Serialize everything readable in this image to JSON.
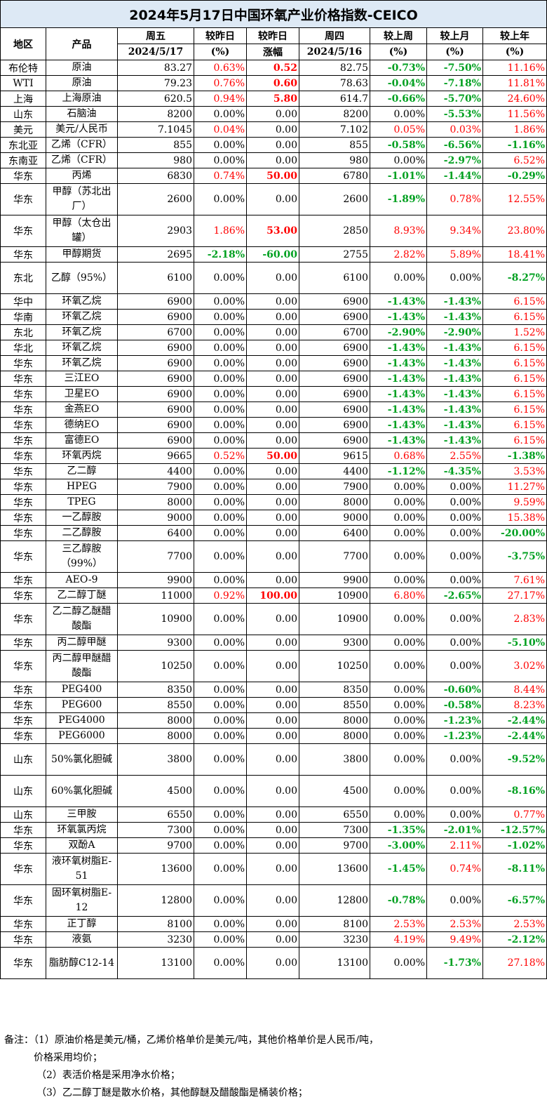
{
  "title": "2024年5月17日中国环氧产业价格指数-CEICO",
  "headers": {
    "region": "地区",
    "product": "产品",
    "fri": "周五",
    "fri_date": "2024/5/17",
    "dod_pct": "较昨日",
    "dod_pct_unit": "(%)",
    "dod_abs": "较昨日",
    "dod_abs_unit": "涨幅",
    "thu": "周四",
    "thu_date": "2024/5/16",
    "wow": "较上周",
    "wow_unit": "(%)",
    "mom": "较上月",
    "mom_unit": "(%)",
    "yoy": "较上年",
    "yoy_unit": "(%)"
  },
  "rows": [
    {
      "region": "布伦特",
      "product": "原油",
      "fri": "83.27",
      "dod_pct": "0.63%",
      "dod_abs": "0.52",
      "thu": "82.75",
      "wow": "-0.73%",
      "mom": "-7.50%",
      "yoy": "11.16%"
    },
    {
      "region": "WTI",
      "product": "原油",
      "fri": "79.23",
      "dod_pct": "0.76%",
      "dod_abs": "0.60",
      "thu": "78.63",
      "wow": "-0.04%",
      "mom": "-7.18%",
      "yoy": "11.81%"
    },
    {
      "region": "上海",
      "product": "上海原油",
      "fri": "620.5",
      "dod_pct": "0.94%",
      "dod_abs": "5.80",
      "thu": "614.7",
      "wow": "-0.66%",
      "mom": "-5.70%",
      "yoy": "24.60%"
    },
    {
      "region": "山东",
      "product": "石脑油",
      "fri": "8200",
      "dod_pct": "0.00%",
      "dod_abs": "0.00",
      "thu": "8200",
      "wow": "0.00%",
      "mom": "-5.53%",
      "yoy": "11.56%"
    },
    {
      "region": "美元",
      "product": "美元/人民币",
      "fri": "7.1045",
      "dod_pct": "0.04%",
      "dod_abs": "0.00",
      "thu": "7.102",
      "wow": "0.05%",
      "mom": "0.03%",
      "yoy": "1.86%"
    },
    {
      "region": "东北亚",
      "product": "乙烯（CFR）",
      "fri": "855",
      "dod_pct": "0.00%",
      "dod_abs": "0.00",
      "thu": "855",
      "wow": "-0.58%",
      "mom": "-6.56%",
      "yoy": "-1.16%"
    },
    {
      "region": "东南亚",
      "product": "乙烯（CFR）",
      "fri": "980",
      "dod_pct": "0.00%",
      "dod_abs": "0.00",
      "thu": "980",
      "wow": "0.00%",
      "mom": "-2.97%",
      "yoy": "6.52%"
    },
    {
      "region": "华东",
      "product": "丙烯",
      "fri": "6830",
      "dod_pct": "0.74%",
      "dod_abs": "50.00",
      "thu": "6780",
      "wow": "-1.01%",
      "mom": "-1.44%",
      "yoy": "-0.29%"
    },
    {
      "region": "华东",
      "product": "甲醇（苏北出厂）",
      "fri": "2600",
      "dod_pct": "0.00%",
      "dod_abs": "0.00",
      "thu": "2600",
      "wow": "-1.89%",
      "mom": "0.78%",
      "yoy": "12.55%"
    },
    {
      "region": "华东",
      "product": "甲醇（太仓出罐）",
      "fri": "2903",
      "dod_pct": "1.86%",
      "dod_abs": "53.00",
      "thu": "2850",
      "wow": "8.93%",
      "mom": "9.34%",
      "yoy": "23.80%"
    },
    {
      "region": "华东",
      "product": "甲醇期货",
      "fri": "2695",
      "dod_pct": "-2.18%",
      "dod_abs": "-60.00",
      "thu": "2755",
      "wow": "2.82%",
      "mom": "5.89%",
      "yoy": "18.41%"
    },
    {
      "region": "东北",
      "product": "乙醇（95%）",
      "fri": "6100",
      "dod_pct": "0.00%",
      "dod_abs": "0.00",
      "thu": "6100",
      "wow": "0.00%",
      "mom": "0.00%",
      "yoy": "-8.27%"
    },
    {
      "region": "华中",
      "product": "环氧乙烷",
      "fri": "6900",
      "dod_pct": "0.00%",
      "dod_abs": "0.00",
      "thu": "6900",
      "wow": "-1.43%",
      "mom": "-1.43%",
      "yoy": "6.15%"
    },
    {
      "region": "华南",
      "product": "环氧乙烷",
      "fri": "6900",
      "dod_pct": "0.00%",
      "dod_abs": "0.00",
      "thu": "6900",
      "wow": "-1.43%",
      "mom": "-1.43%",
      "yoy": "6.15%"
    },
    {
      "region": "东北",
      "product": "环氧乙烷",
      "fri": "6700",
      "dod_pct": "0.00%",
      "dod_abs": "0.00",
      "thu": "6700",
      "wow": "-2.90%",
      "mom": "-2.90%",
      "yoy": "1.52%"
    },
    {
      "region": "华北",
      "product": "环氧乙烷",
      "fri": "6900",
      "dod_pct": "0.00%",
      "dod_abs": "0.00",
      "thu": "6900",
      "wow": "-1.43%",
      "mom": "-1.43%",
      "yoy": "6.15%"
    },
    {
      "region": "华东",
      "product": "环氧乙烷",
      "fri": "6900",
      "dod_pct": "0.00%",
      "dod_abs": "0.00",
      "thu": "6900",
      "wow": "-1.43%",
      "mom": "-1.43%",
      "yoy": "6.15%"
    },
    {
      "region": "华东",
      "product": "三江EO",
      "fri": "6900",
      "dod_pct": "0.00%",
      "dod_abs": "0.00",
      "thu": "6900",
      "wow": "-1.43%",
      "mom": "-1.43%",
      "yoy": "6.15%"
    },
    {
      "region": "华东",
      "product": "卫星EO",
      "fri": "6900",
      "dod_pct": "0.00%",
      "dod_abs": "0.00",
      "thu": "6900",
      "wow": "-1.43%",
      "mom": "-1.43%",
      "yoy": "6.15%"
    },
    {
      "region": "华东",
      "product": "金燕EO",
      "fri": "6900",
      "dod_pct": "0.00%",
      "dod_abs": "0.00",
      "thu": "6900",
      "wow": "-1.43%",
      "mom": "-1.43%",
      "yoy": "6.15%"
    },
    {
      "region": "华东",
      "product": "德纳EO",
      "fri": "6900",
      "dod_pct": "0.00%",
      "dod_abs": "0.00",
      "thu": "6900",
      "wow": "-1.43%",
      "mom": "-1.43%",
      "yoy": "6.15%"
    },
    {
      "region": "华东",
      "product": "富德EO",
      "fri": "6900",
      "dod_pct": "0.00%",
      "dod_abs": "0.00",
      "thu": "6900",
      "wow": "-1.43%",
      "mom": "-1.43%",
      "yoy": "6.15%"
    },
    {
      "region": "华东",
      "product": "环氧丙烷",
      "fri": "9665",
      "dod_pct": "0.52%",
      "dod_abs": "50.00",
      "thu": "9615",
      "wow": "0.68%",
      "mom": "2.55%",
      "yoy": "-1.38%"
    },
    {
      "region": "华东",
      "product": "乙二醇",
      "fri": "4400",
      "dod_pct": "0.00%",
      "dod_abs": "0.00",
      "thu": "4400",
      "wow": "-1.12%",
      "mom": "-4.35%",
      "yoy": "3.53%"
    },
    {
      "region": "华东",
      "product": "HPEG",
      "fri": "7900",
      "dod_pct": "0.00%",
      "dod_abs": "0.00",
      "thu": "7900",
      "wow": "0.00%",
      "mom": "0.00%",
      "yoy": "11.27%"
    },
    {
      "region": "华东",
      "product": "TPEG",
      "fri": "8000",
      "dod_pct": "0.00%",
      "dod_abs": "0.00",
      "thu": "8000",
      "wow": "0.00%",
      "mom": "0.00%",
      "yoy": "9.59%"
    },
    {
      "region": "华东",
      "product": "一乙醇胺",
      "fri": "9000",
      "dod_pct": "0.00%",
      "dod_abs": "0.00",
      "thu": "9000",
      "wow": "0.00%",
      "mom": "0.00%",
      "yoy": "15.38%"
    },
    {
      "region": "华东",
      "product": "二乙醇胺",
      "fri": "6400",
      "dod_pct": "0.00%",
      "dod_abs": "0.00",
      "thu": "6400",
      "wow": "0.00%",
      "mom": "0.00%",
      "yoy": "-20.00%"
    },
    {
      "region": "华东",
      "product": "三乙醇胺（99%）",
      "fri": "7700",
      "dod_pct": "0.00%",
      "dod_abs": "0.00",
      "thu": "7700",
      "wow": "0.00%",
      "mom": "0.00%",
      "yoy": "-3.75%"
    },
    {
      "region": "华东",
      "product": "AEO-9",
      "fri": "9900",
      "dod_pct": "0.00%",
      "dod_abs": "0.00",
      "thu": "9900",
      "wow": "0.00%",
      "mom": "0.00%",
      "yoy": "7.61%"
    },
    {
      "region": "华东",
      "product": "乙二醇丁醚",
      "fri": "11000",
      "dod_pct": "0.92%",
      "dod_abs": "100.00",
      "thu": "10900",
      "wow": "6.80%",
      "mom": "-2.65%",
      "yoy": "27.17%"
    },
    {
      "region": "华东",
      "product": "乙二醇乙醚醋酸酯",
      "fri": "10900",
      "dod_pct": "0.00%",
      "dod_abs": "0.00",
      "thu": "10900",
      "wow": "0.00%",
      "mom": "0.00%",
      "yoy": "2.83%"
    },
    {
      "region": "华东",
      "product": "丙二醇甲醚",
      "fri": "9300",
      "dod_pct": "0.00%",
      "dod_abs": "0.00",
      "thu": "9300",
      "wow": "0.00%",
      "mom": "0.00%",
      "yoy": "-5.10%"
    },
    {
      "region": "华东",
      "product": "丙二醇甲醚醋酸酯",
      "fri": "10250",
      "dod_pct": "0.00%",
      "dod_abs": "0.00",
      "thu": "10250",
      "wow": "0.00%",
      "mom": "0.00%",
      "yoy": "3.02%"
    },
    {
      "region": "华东",
      "product": "PEG400",
      "fri": "8350",
      "dod_pct": "0.00%",
      "dod_abs": "0.00",
      "thu": "8350",
      "wow": "0.00%",
      "mom": "-0.60%",
      "yoy": "8.44%"
    },
    {
      "region": "华东",
      "product": "PEG600",
      "fri": "8550",
      "dod_pct": "0.00%",
      "dod_abs": "0.00",
      "thu": "8550",
      "wow": "0.00%",
      "mom": "-0.58%",
      "yoy": "8.23%"
    },
    {
      "region": "华东",
      "product": "PEG4000",
      "fri": "8000",
      "dod_pct": "0.00%",
      "dod_abs": "0.00",
      "thu": "8000",
      "wow": "0.00%",
      "mom": "-1.23%",
      "yoy": "-2.44%"
    },
    {
      "region": "华东",
      "product": "PEG6000",
      "fri": "8000",
      "dod_pct": "0.00%",
      "dod_abs": "0.00",
      "thu": "8000",
      "wow": "0.00%",
      "mom": "-1.23%",
      "yoy": "-2.44%"
    },
    {
      "region": "山东",
      "product": "50%氯化胆碱",
      "fri": "3800",
      "dod_pct": "0.00%",
      "dod_abs": "0.00",
      "thu": "3800",
      "wow": "0.00%",
      "mom": "0.00%",
      "yoy": "-9.52%"
    },
    {
      "region": "山东",
      "product": "60%氯化胆碱",
      "fri": "4500",
      "dod_pct": "0.00%",
      "dod_abs": "0.00",
      "thu": "4500",
      "wow": "0.00%",
      "mom": "0.00%",
      "yoy": "-8.16%"
    },
    {
      "region": "山东",
      "product": "三甲胺",
      "fri": "6550",
      "dod_pct": "0.00%",
      "dod_abs": "0.00",
      "thu": "6550",
      "wow": "0.00%",
      "mom": "0.00%",
      "yoy": "0.77%"
    },
    {
      "region": "华东",
      "product": "环氧氯丙烷",
      "fri": "7300",
      "dod_pct": "0.00%",
      "dod_abs": "0.00",
      "thu": "7300",
      "wow": "-1.35%",
      "mom": "-2.01%",
      "yoy": "-12.57%"
    },
    {
      "region": "华东",
      "product": "双酚A",
      "fri": "9700",
      "dod_pct": "0.00%",
      "dod_abs": "0.00",
      "thu": "9700",
      "wow": "-3.00%",
      "mom": "2.11%",
      "yoy": "-1.02%"
    },
    {
      "region": "华东",
      "product": "液环氧树脂E-51",
      "fri": "13600",
      "dod_pct": "0.00%",
      "dod_abs": "0.00",
      "thu": "13600",
      "wow": "-1.45%",
      "mom": "0.74%",
      "yoy": "-8.11%"
    },
    {
      "region": "华东",
      "product": "固环氧树脂E-12",
      "fri": "12800",
      "dod_pct": "0.00%",
      "dod_abs": "0.00",
      "thu": "12800",
      "wow": "-0.78%",
      "mom": "0.00%",
      "yoy": "-6.57%"
    },
    {
      "region": "华东",
      "product": "正丁醇",
      "fri": "8100",
      "dod_pct": "0.00%",
      "dod_abs": "0.00",
      "thu": "8100",
      "wow": "2.53%",
      "mom": "2.53%",
      "yoy": "2.53%"
    },
    {
      "region": "华东",
      "product": "液氨",
      "fri": "3230",
      "dod_pct": "0.00%",
      "dod_abs": "0.00",
      "thu": "3230",
      "wow": "4.19%",
      "mom": "9.49%",
      "yoy": "-2.12%"
    },
    {
      "region": "华东",
      "product": "脂肪醇C12-14",
      "fri": "13100",
      "dod_pct": "0.00%",
      "dod_abs": "0.00",
      "thu": "13100",
      "wow": "0.00%",
      "mom": "-1.73%",
      "yoy": "27.18%"
    }
  ],
  "notes": [
    "备注：（1）原油价格是美元/桶，乙烯价格单价是美元/吨，其他价格单价是人民币/吨，",
    "价格采用均价；",
    "（2）表活价格是采用净水价格；",
    "（3）乙二醇丁醚是散水价格，其他醇醚及醋酸酯是桶装价格；"
  ],
  "colors": {
    "up": "#ff0000",
    "down": "#00a020",
    "title_bg": "#dde9f5"
  }
}
